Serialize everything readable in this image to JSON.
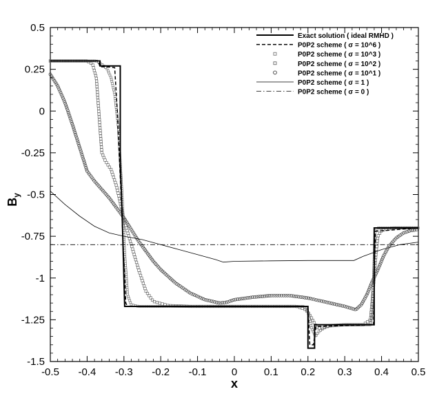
{
  "chart_data": {
    "type": "line",
    "title": "",
    "xlabel": "x",
    "ylabel": "B",
    "ylabel_sub": "y",
    "xlim": [
      -0.5,
      0.5
    ],
    "ylim": [
      -1.5,
      0.5
    ],
    "x_ticks": [
      "-0.5",
      "-0.4",
      "-0.3",
      "-0.2",
      "-0.1",
      "0",
      "0.1",
      "0.2",
      "0.3",
      "0.4",
      "0.5"
    ],
    "y_ticks": [
      "-1.5",
      "-1.25",
      "-1",
      "-0.75",
      "-0.5",
      "-0.25",
      "0",
      "0.25",
      "0.5"
    ],
    "legend_position": "top-right",
    "grid": false,
    "series": [
      {
        "name": "Exact solution ( ideal RMHD )",
        "style": "solid-thick",
        "points": [
          [
            -0.5,
            0.3
          ],
          [
            -0.365,
            0.3
          ],
          [
            -0.365,
            0.27
          ],
          [
            -0.31,
            0.27
          ],
          [
            -0.31,
            -0.3
          ],
          [
            -0.305,
            -0.6
          ],
          [
            -0.298,
            -1.17
          ],
          [
            0.2,
            -1.17
          ],
          [
            0.2,
            -1.42
          ],
          [
            0.218,
            -1.42
          ],
          [
            0.218,
            -1.28
          ],
          [
            0.38,
            -1.28
          ],
          [
            0.38,
            -0.7
          ],
          [
            0.5,
            -0.7
          ]
        ]
      },
      {
        "name": "P0P2 scheme ( σ = 10^6 )",
        "style": "dashed",
        "points": [
          [
            -0.5,
            0.3
          ],
          [
            -0.37,
            0.3
          ],
          [
            -0.365,
            0.265
          ],
          [
            -0.345,
            0.265
          ],
          [
            -0.325,
            0.26
          ],
          [
            -0.318,
            0.0
          ],
          [
            -0.31,
            -0.4
          ],
          [
            -0.303,
            -0.75
          ],
          [
            -0.295,
            -1.15
          ],
          [
            -0.29,
            -1.17
          ],
          [
            0.2,
            -1.17
          ],
          [
            0.205,
            -1.4
          ],
          [
            0.215,
            -1.4
          ],
          [
            0.222,
            -1.29
          ],
          [
            0.378,
            -1.28
          ],
          [
            0.383,
            -0.72
          ],
          [
            0.5,
            -0.7
          ]
        ]
      },
      {
        "name": "P0P2 scheme ( σ = 10^3 )",
        "style": "marker-small",
        "points": [
          [
            -0.5,
            0.3
          ],
          [
            -0.375,
            0.3
          ],
          [
            -0.36,
            0.28
          ],
          [
            -0.345,
            0.25
          ],
          [
            -0.335,
            0.2
          ],
          [
            -0.325,
            0.1
          ],
          [
            -0.315,
            -0.1
          ],
          [
            -0.305,
            -0.5
          ],
          [
            -0.298,
            -0.85
          ],
          [
            -0.29,
            -1.1
          ],
          [
            -0.28,
            -1.16
          ],
          [
            -0.26,
            -1.17
          ],
          [
            0.19,
            -1.17
          ],
          [
            0.2,
            -1.2
          ],
          [
            0.21,
            -1.3
          ],
          [
            0.22,
            -1.35
          ],
          [
            0.23,
            -1.32
          ],
          [
            0.25,
            -1.29
          ],
          [
            0.3,
            -1.28
          ],
          [
            0.37,
            -1.28
          ],
          [
            0.375,
            -1.2
          ],
          [
            0.378,
            -1.0
          ],
          [
            0.38,
            -0.85
          ],
          [
            0.382,
            -0.72
          ],
          [
            0.39,
            -0.7
          ],
          [
            0.5,
            -0.7
          ]
        ]
      },
      {
        "name": "P0P2 scheme ( σ = 10^2 )",
        "style": "marker-medium",
        "points": [
          [
            -0.5,
            0.3
          ],
          [
            -0.4,
            0.3
          ],
          [
            -0.385,
            0.28
          ],
          [
            -0.375,
            0.2
          ],
          [
            -0.37,
            0.05
          ],
          [
            -0.365,
            -0.1
          ],
          [
            -0.36,
            -0.25
          ],
          [
            -0.35,
            -0.3
          ],
          [
            -0.335,
            -0.35
          ],
          [
            -0.32,
            -0.45
          ],
          [
            -0.3,
            -0.65
          ],
          [
            -0.28,
            -0.8
          ],
          [
            -0.26,
            -0.95
          ],
          [
            -0.24,
            -1.08
          ],
          [
            -0.22,
            -1.14
          ],
          [
            -0.18,
            -1.165
          ],
          [
            -0.12,
            -1.17
          ],
          [
            0.17,
            -1.17
          ],
          [
            0.195,
            -1.19
          ],
          [
            0.21,
            -1.24
          ],
          [
            0.225,
            -1.3
          ],
          [
            0.24,
            -1.3
          ],
          [
            0.26,
            -1.285
          ],
          [
            0.3,
            -1.28
          ],
          [
            0.35,
            -1.28
          ],
          [
            0.37,
            -1.25
          ],
          [
            0.378,
            -1.05
          ],
          [
            0.385,
            -0.85
          ],
          [
            0.39,
            -0.75
          ],
          [
            0.4,
            -0.715
          ],
          [
            0.43,
            -0.7
          ],
          [
            0.5,
            -0.7
          ]
        ]
      },
      {
        "name": "P0P2 scheme ( σ = 10^1 )",
        "style": "marker-large",
        "points": [
          [
            -0.5,
            0.22
          ],
          [
            -0.48,
            0.15
          ],
          [
            -0.46,
            0.05
          ],
          [
            -0.44,
            -0.08
          ],
          [
            -0.42,
            -0.22
          ],
          [
            -0.4,
            -0.36
          ],
          [
            -0.38,
            -0.42
          ],
          [
            -0.36,
            -0.47
          ],
          [
            -0.34,
            -0.52
          ],
          [
            -0.32,
            -0.58
          ],
          [
            -0.3,
            -0.64
          ],
          [
            -0.28,
            -0.71
          ],
          [
            -0.26,
            -0.78
          ],
          [
            -0.24,
            -0.84
          ],
          [
            -0.22,
            -0.9
          ],
          [
            -0.2,
            -0.95
          ],
          [
            -0.18,
            -0.99
          ],
          [
            -0.16,
            -1.03
          ],
          [
            -0.14,
            -1.06
          ],
          [
            -0.12,
            -1.09
          ],
          [
            -0.1,
            -1.11
          ],
          [
            -0.08,
            -1.13
          ],
          [
            -0.06,
            -1.14
          ],
          [
            -0.04,
            -1.15
          ],
          [
            -0.02,
            -1.145
          ],
          [
            0.0,
            -1.13
          ],
          [
            0.05,
            -1.115
          ],
          [
            0.1,
            -1.105
          ],
          [
            0.15,
            -1.105
          ],
          [
            0.2,
            -1.12
          ],
          [
            0.25,
            -1.145
          ],
          [
            0.3,
            -1.17
          ],
          [
            0.33,
            -1.19
          ],
          [
            0.345,
            -1.16
          ],
          [
            0.36,
            -1.1
          ],
          [
            0.375,
            -1.02
          ],
          [
            0.39,
            -0.95
          ],
          [
            0.405,
            -0.87
          ],
          [
            0.42,
            -0.81
          ],
          [
            0.44,
            -0.76
          ],
          [
            0.46,
            -0.73
          ],
          [
            0.48,
            -0.715
          ],
          [
            0.5,
            -0.71
          ]
        ]
      },
      {
        "name": "P0P2 scheme ( σ = 1 )",
        "style": "solid-thin",
        "points": [
          [
            -0.5,
            -0.48
          ],
          [
            -0.46,
            -0.56
          ],
          [
            -0.42,
            -0.63
          ],
          [
            -0.38,
            -0.69
          ],
          [
            -0.34,
            -0.73
          ],
          [
            -0.3,
            -0.75
          ],
          [
            -0.25,
            -0.77
          ],
          [
            -0.2,
            -0.8
          ],
          [
            -0.15,
            -0.83
          ],
          [
            -0.1,
            -0.86
          ],
          [
            -0.05,
            -0.89
          ],
          [
            -0.03,
            -0.905
          ],
          [
            0.0,
            -0.9
          ],
          [
            0.1,
            -0.897
          ],
          [
            0.2,
            -0.895
          ],
          [
            0.3,
            -0.895
          ],
          [
            0.325,
            -0.895
          ],
          [
            0.35,
            -0.87
          ],
          [
            0.4,
            -0.83
          ],
          [
            0.45,
            -0.8
          ],
          [
            0.5,
            -0.785
          ]
        ]
      },
      {
        "name": "P0P2 scheme ( σ = 0 )",
        "style": "dashdot",
        "points": [
          [
            -0.5,
            -0.8
          ],
          [
            0.5,
            -0.8
          ]
        ]
      }
    ]
  }
}
